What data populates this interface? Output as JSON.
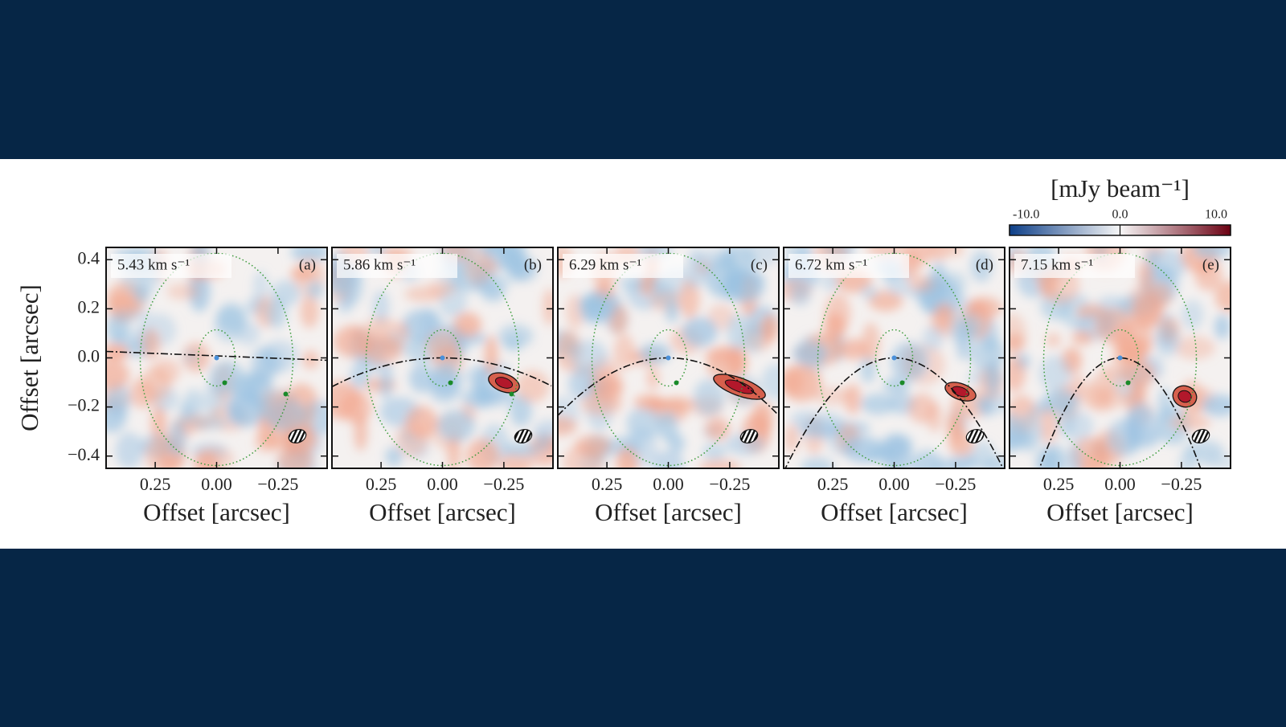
{
  "chart_data": [
    {
      "type": "image",
      "title": "5.43 km s⁻¹",
      "panel": "(a)",
      "xlabel": "Offset [arcsec]",
      "ylabel": "Offset [arcsec]",
      "xlim": [
        0.45,
        -0.45
      ],
      "ylim": [
        -0.45,
        0.45
      ],
      "xticks": [
        0.25,
        {
          "value": 0,
          "label": "0.00"
        },
        {
          "value": -0.25,
          "label": "−0.25"
        }
      ],
      "yticks": [
        0.4,
        0.2,
        {
          "value": 0,
          "label": "0.0"
        },
        {
          "value": -0.2,
          "label": "−0.2"
        },
        {
          "value": -0.4,
          "label": "−0.4"
        }
      ]
    },
    {
      "type": "image",
      "title": "5.86 km s⁻¹",
      "panel": "(b)",
      "xlabel": "Offset [arcsec]",
      "xlim": [
        0.45,
        -0.45
      ],
      "ylim": [
        -0.45,
        0.45
      ],
      "xticks": [
        0.25,
        {
          "value": 0,
          "label": "0.00"
        },
        {
          "value": -0.25,
          "label": "−0.25"
        }
      ]
    },
    {
      "type": "image",
      "title": "6.29 km s⁻¹",
      "panel": "(c)",
      "xlabel": "Offset [arcsec]",
      "xlim": [
        0.45,
        -0.45
      ],
      "ylim": [
        -0.45,
        0.45
      ],
      "xticks": [
        0.25,
        {
          "value": 0,
          "label": "0.00"
        },
        {
          "value": -0.25,
          "label": "−0.25"
        }
      ]
    },
    {
      "type": "image",
      "title": "6.72 km s⁻¹",
      "panel": "(d)",
      "xlabel": "Offset [arcsec]",
      "xlim": [
        0.45,
        -0.45
      ],
      "ylim": [
        -0.45,
        0.45
      ],
      "xticks": [
        0.25,
        {
          "value": 0,
          "label": "0.00"
        },
        {
          "value": -0.25,
          "label": "−0.25"
        }
      ]
    },
    {
      "type": "image",
      "title": "7.15 km s⁻¹",
      "panel": "(e)",
      "xlabel": "Offset [arcsec]",
      "xlim": [
        0.45,
        -0.45
      ],
      "ylim": [
        -0.45,
        0.45
      ],
      "xticks": [
        0.25,
        {
          "value": 0,
          "label": "0.00"
        },
        {
          "value": -0.25,
          "label": "−0.25"
        }
      ]
    }
  ],
  "colorbar": {
    "label": "[mJy beam⁻¹]",
    "lim": [
      -10,
      10
    ],
    "ticks": [
      {
        "value": -10,
        "label": "-10.0"
      },
      {
        "value": 0,
        "label": "0.0"
      },
      {
        "value": 10,
        "label": "10.0"
      }
    ],
    "colors": [
      "#0d3f88",
      "#f7f7f7",
      "#6b0012"
    ]
  }
}
